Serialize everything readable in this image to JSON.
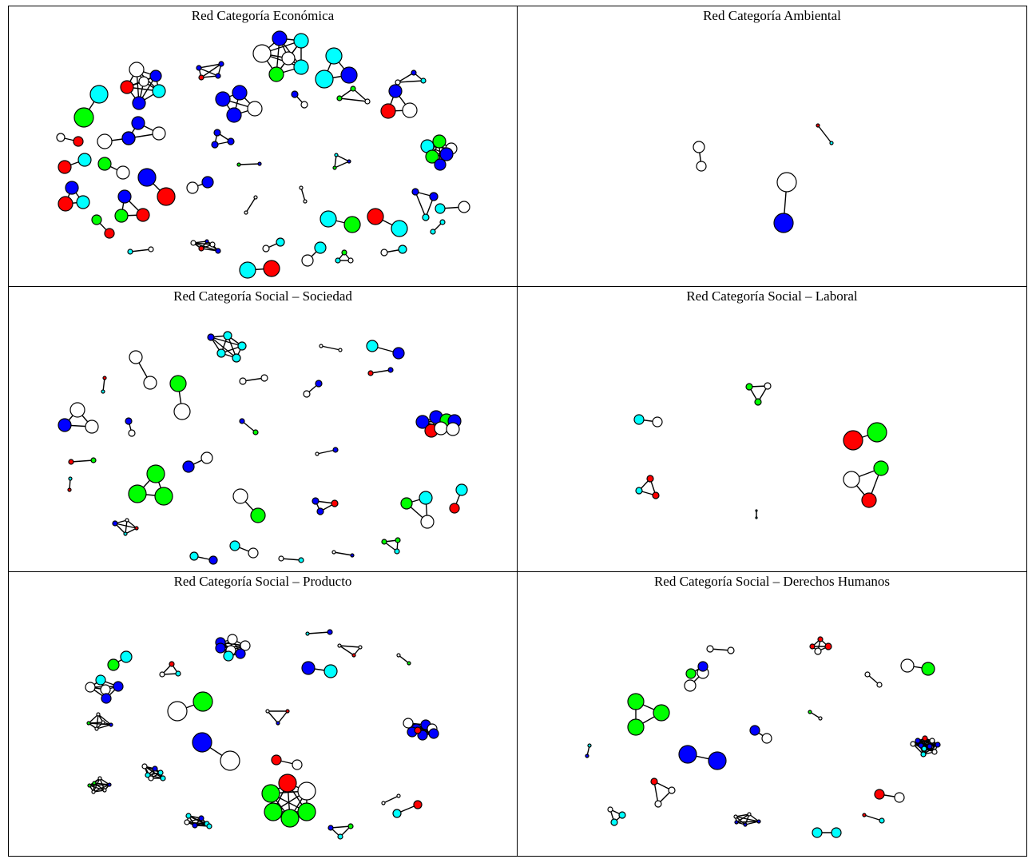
{
  "panels": [
    {
      "title": "Red Categoría Económica"
    },
    {
      "title": "Red Categoría Ambiental"
    },
    {
      "title": "Red Categoría Social – Sociedad"
    },
    {
      "title": "Red Categoría Social – Laboral"
    },
    {
      "title": "Red Categoría Social – Producto"
    },
    {
      "title": "Red Categoría Social – Derechos Humanos"
    }
  ],
  "colors": {
    "W": "#ffffff",
    "B": "#0000ff",
    "C": "#00ffff",
    "G": "#00ff00",
    "R": "#ff0000"
  }
}
